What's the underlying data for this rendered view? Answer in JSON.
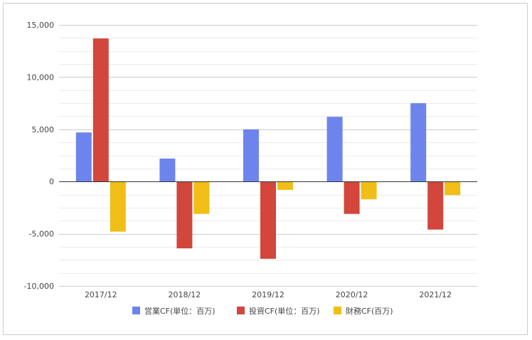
{
  "chart_data": {
    "type": "bar",
    "categories": [
      "2017/12",
      "2018/12",
      "2019/12",
      "2020/12",
      "2021/12"
    ],
    "series": [
      {
        "name": "営業CF(単位：百万)",
        "color": "#6d84ed",
        "values": [
          4700,
          2200,
          5000,
          6200,
          7500
        ]
      },
      {
        "name": "投資CF(単位：百万)",
        "color": "#d2463c",
        "values": [
          13700,
          -6400,
          -7400,
          -3100,
          -4600
        ]
      },
      {
        "name": "財務CF(百万)",
        "color": "#f0be16",
        "values": [
          -4800,
          -3100,
          -800,
          -1700,
          -1300
        ]
      }
    ],
    "ylim": [
      -10000,
      15000
    ],
    "yticks": [
      -10000,
      -5000,
      0,
      5000,
      10000,
      15000
    ],
    "ytick_labels": [
      "-10,000",
      "-5,000",
      "0",
      "5,000",
      "10,000",
      "15,000"
    ],
    "grid": true,
    "minor_gridlines_per_major": 4,
    "legend_position": "bottom",
    "title": "",
    "xlabel": "",
    "ylabel": ""
  }
}
